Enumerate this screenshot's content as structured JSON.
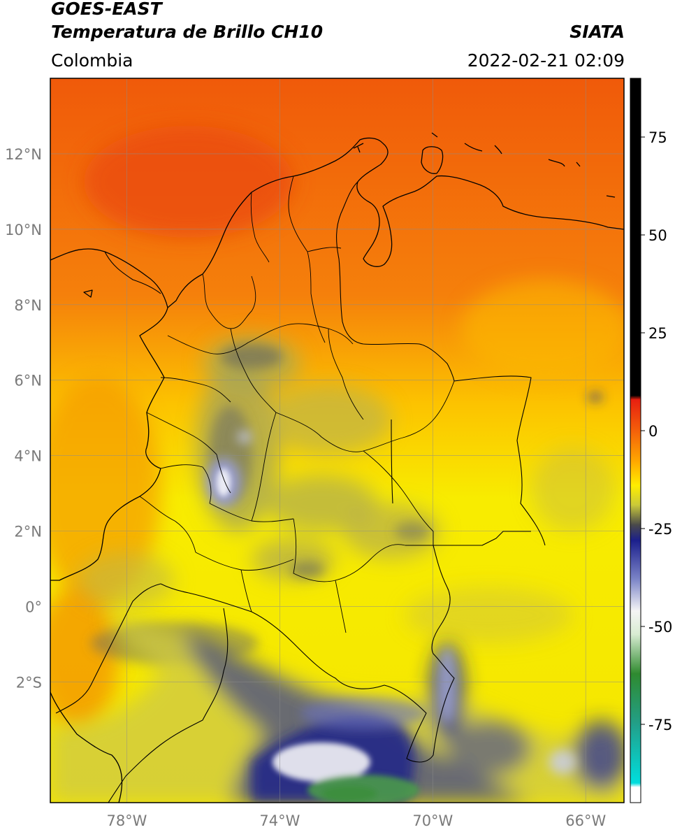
{
  "header": {
    "satellite": "GOES-EAST",
    "product": "Temperatura de Brillo CH10",
    "brand": "SIATA",
    "region": "Colombia",
    "timestamp": "2022-02-21 02:09"
  },
  "map": {
    "lon_range": [
      -80,
      -65
    ],
    "lat_range": [
      -5.2,
      14
    ],
    "lon_ticks": [
      {
        "value": -78,
        "label": "78°W"
      },
      {
        "value": -74,
        "label": "74°W"
      },
      {
        "value": -70,
        "label": "70°W"
      },
      {
        "value": -66,
        "label": "66°W"
      }
    ],
    "lat_ticks": [
      {
        "value": 12,
        "label": "12°N"
      },
      {
        "value": 10,
        "label": "10°N"
      },
      {
        "value": 8,
        "label": "8°N"
      },
      {
        "value": 6,
        "label": "6°N"
      },
      {
        "value": 4,
        "label": "4°N"
      },
      {
        "value": 2,
        "label": "2°N"
      },
      {
        "value": 0,
        "label": "0°"
      },
      {
        "value": -2,
        "label": "2°S"
      }
    ]
  },
  "colorbar": {
    "range": [
      -95,
      90
    ],
    "ticks": [
      {
        "value": 75,
        "label": "75"
      },
      {
        "value": 50,
        "label": "50"
      },
      {
        "value": 25,
        "label": "25"
      },
      {
        "value": 0,
        "label": "0"
      },
      {
        "value": -25,
        "label": "-25"
      },
      {
        "value": -50,
        "label": "-50"
      },
      {
        "value": -75,
        "label": "-75"
      }
    ],
    "stops": [
      {
        "value": 90,
        "color": "#000000"
      },
      {
        "value": 9,
        "color": "#000000"
      },
      {
        "value": 8,
        "color": "#e81f10"
      },
      {
        "value": 0,
        "color": "#f4600a"
      },
      {
        "value": -8,
        "color": "#ffaa00"
      },
      {
        "value": -14,
        "color": "#ffee00"
      },
      {
        "value": -19,
        "color": "#c9c93a"
      },
      {
        "value": -24,
        "color": "#4a4a4a"
      },
      {
        "value": -28,
        "color": "#1b1f8c"
      },
      {
        "value": -38,
        "color": "#7d86c8"
      },
      {
        "value": -46,
        "color": "#f5f5f5"
      },
      {
        "value": -52,
        "color": "#d8ecd2"
      },
      {
        "value": -62,
        "color": "#2f8a2f"
      },
      {
        "value": -75,
        "color": "#22a08a"
      },
      {
        "value": -90,
        "color": "#00dede"
      },
      {
        "value": -91,
        "color": "#ffffff"
      },
      {
        "value": -95,
        "color": "#ffffff"
      }
    ]
  },
  "colors": {
    "warm_ocean": "#f46a0a",
    "hot_core": "#ee4a0c",
    "land_yellow": "#f6ea00",
    "cloud_olive": "#a8a550",
    "cloud_gray": "#6b6b5e",
    "cloud_blue": "#1c2488",
    "cloud_white": "#f3f3f3",
    "cloud_green": "#3f8f3f",
    "border": "#000000",
    "grid": "#8c8c8c"
  }
}
